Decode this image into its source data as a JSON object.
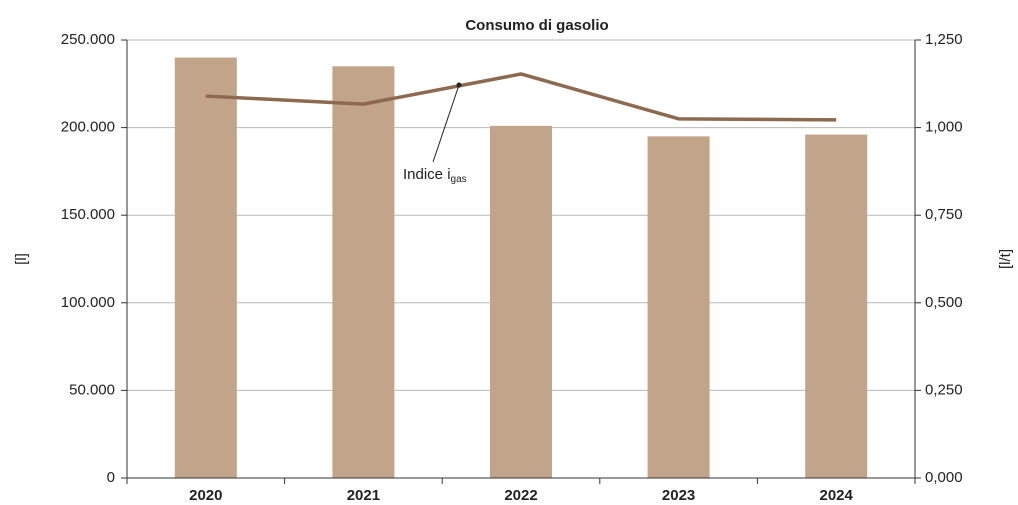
{
  "chart_data": {
    "type": "bar",
    "title": "Consumo di gasolio",
    "categories": [
      "2020",
      "2021",
      "2022",
      "2023",
      "2024"
    ],
    "series": [
      {
        "type": "bar",
        "axis": "y",
        "color": "#c1a48a",
        "values": [
          240000,
          235000,
          201000,
          195000,
          196000
        ]
      },
      {
        "type": "line",
        "axis": "y2",
        "color": "#8c6a4f",
        "values": [
          1.09,
          1.067,
          1.153,
          1.025,
          1.022
        ]
      }
    ],
    "ylabel": "[l]",
    "y2label": "[l/t]",
    "ylim": [
      0,
      250000
    ],
    "yticks": [
      0,
      {
        "value": 50000,
        "label": "50.000"
      },
      {
        "value": 100000,
        "label": "100.000"
      },
      {
        "value": 150000,
        "label": "150.000"
      },
      {
        "value": 200000,
        "label": "200.000"
      },
      {
        "value": 250000,
        "label": "250.000"
      }
    ],
    "y2lim": [
      0,
      1.25
    ],
    "y2ticks": [
      {
        "value": 0,
        "label": "0,000"
      },
      {
        "value": 0.25,
        "label": "0,250"
      },
      {
        "value": 0.5,
        "label": "0,500"
      },
      {
        "value": 0.75,
        "label": "0,750"
      },
      {
        "value": 1,
        "label": "1,000"
      },
      {
        "value": 1.25,
        "label": "1,250"
      }
    ],
    "grid": true,
    "annotation": {
      "text": "Indice i",
      "subscript": "gas"
    }
  }
}
